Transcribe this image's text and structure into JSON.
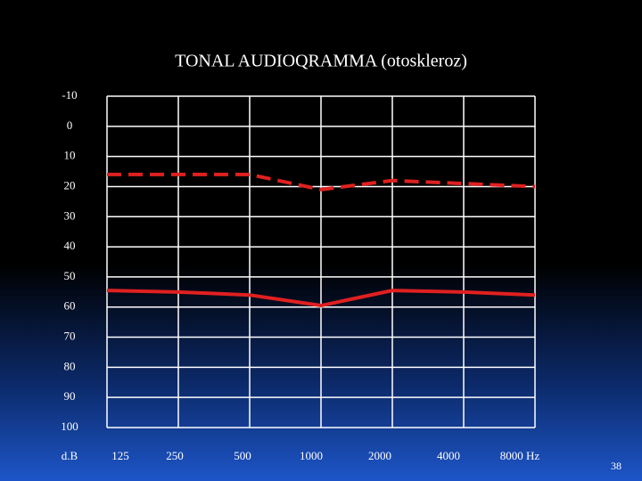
{
  "chart_data": {
    "type": "line",
    "title": "TONAL  AUDIOQRAMMA (otoskleroz)",
    "y_label": "d.B",
    "categories": [
      "125",
      "250",
      "500",
      "1000",
      "2000",
      "4000",
      "8000 Hz"
    ],
    "series": [
      {
        "color": "#e02020",
        "style": "dashed",
        "values": [
          16,
          16,
          16,
          21,
          18,
          19,
          20
        ]
      },
      {
        "color": "#e02020",
        "style": "solid",
        "values": [
          54.5,
          55,
          56,
          59.5,
          54.5,
          55,
          56
        ]
      }
    ],
    "ylim": [
      -10,
      100
    ],
    "y_inverted": true,
    "yticks": [
      -10,
      0,
      10,
      20,
      30,
      40,
      50,
      60,
      70,
      80,
      90,
      100
    ],
    "grid": true,
    "page_number": "38"
  }
}
